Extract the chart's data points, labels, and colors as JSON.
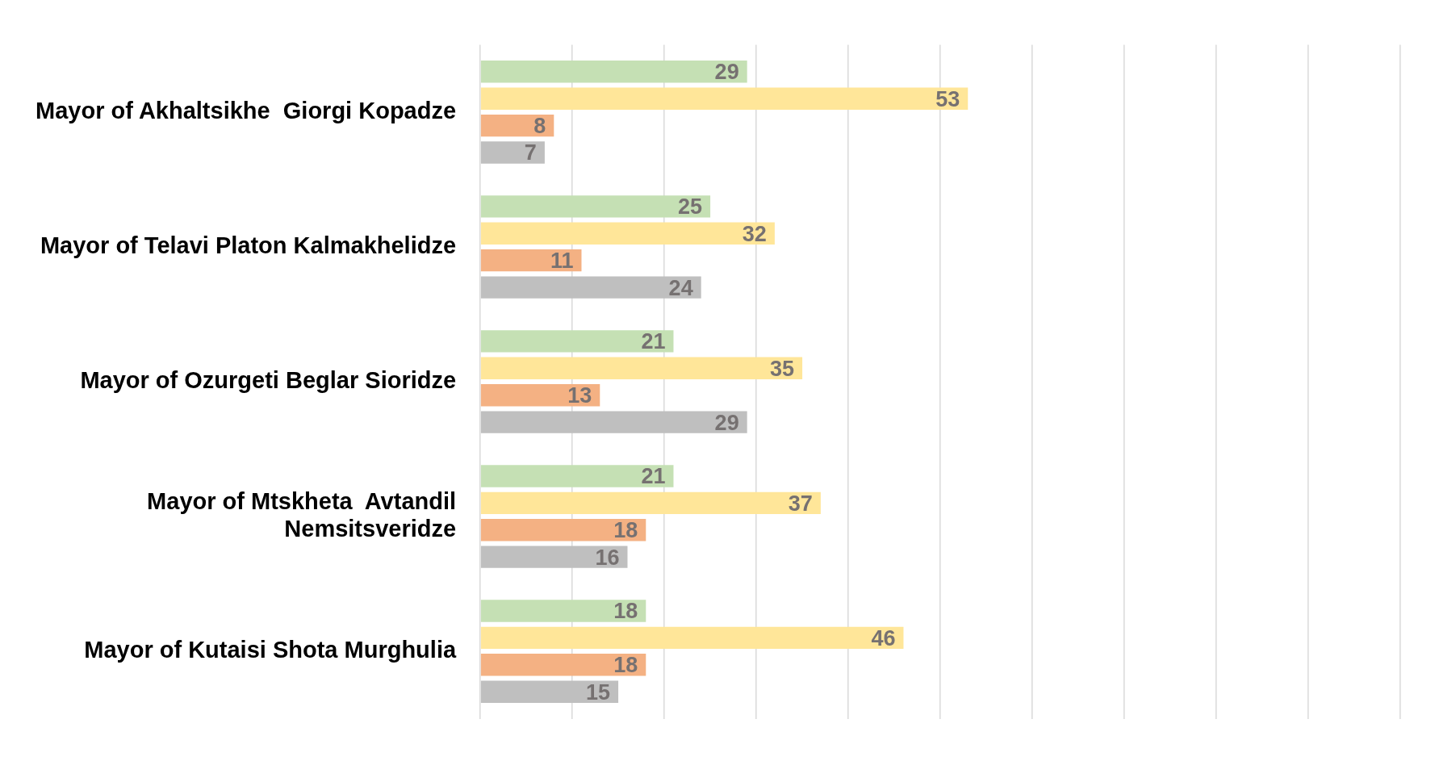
{
  "chart_data": {
    "type": "bar",
    "orientation": "horizontal",
    "categories": [
      "Mayor of Akhaltsikhe  Giorgi Kopadze",
      "Mayor of Telavi Platon Kalmakhelidze",
      "Mayor of Ozurgeti Beglar Sioridze",
      "Mayor of Mtskheta  Avtandil Nemsitsveridze",
      "Mayor of Kutaisi Shota Murghulia"
    ],
    "series": [
      {
        "color": "#c5e0b4",
        "values": [
          29,
          25,
          21,
          21,
          18
        ]
      },
      {
        "color": "#ffe699",
        "values": [
          53,
          32,
          35,
          37,
          46
        ]
      },
      {
        "color": "#f4b183",
        "values": [
          8,
          11,
          13,
          18,
          18
        ]
      },
      {
        "color": "#bfbfbf",
        "values": [
          7,
          24,
          29,
          16,
          15
        ]
      }
    ],
    "xlim": [
      0,
      100
    ],
    "xticks": [
      {
        "value": 0,
        "label": null
      },
      {
        "value": 10,
        "label": null
      },
      {
        "value": 20,
        "label": null
      },
      {
        "value": 30,
        "label": null
      },
      {
        "value": 40,
        "label": null
      },
      {
        "value": 50,
        "label": null
      },
      {
        "value": 60,
        "label": null
      },
      {
        "value": 70,
        "label": null
      },
      {
        "value": 80,
        "label": null
      },
      {
        "value": 90,
        "label": null
      },
      {
        "value": 100,
        "label": null
      }
    ],
    "grid": "x",
    "legend": false,
    "data_labels": true,
    "tick_labels": "y"
  }
}
